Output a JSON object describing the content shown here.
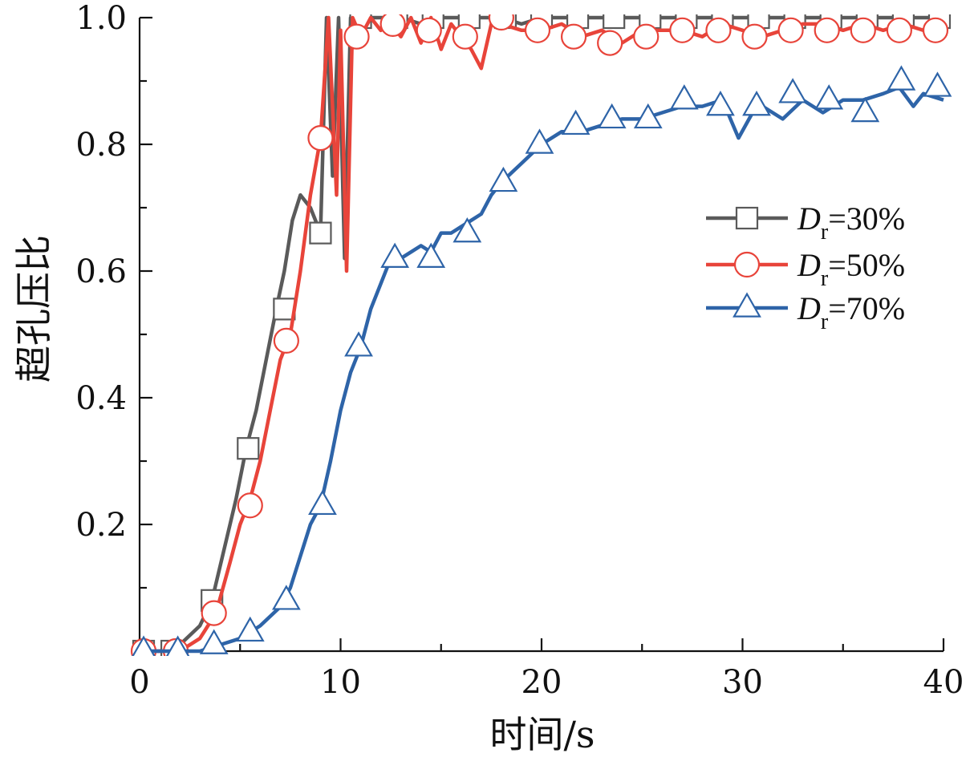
{
  "chart_data": {
    "type": "line",
    "title": "",
    "xlabel": "时间/s",
    "ylabel": "超孔压比",
    "xlim": [
      0,
      40
    ],
    "ylim": [
      0,
      1.0
    ],
    "x_ticks": [
      "0",
      "10",
      "20",
      "30",
      "40"
    ],
    "y_ticks": [
      "0.2",
      "0.4",
      "0.6",
      "0.8",
      "1.0"
    ],
    "grid": false,
    "legend_position": "right-center",
    "series": [
      {
        "name": "Dr=30%",
        "legend_main": "D",
        "legend_sub": "r",
        "legend_rest": "=30%",
        "color": "#5a5a5a",
        "marker": "square",
        "x": [
          0.2,
          1.0,
          2.0,
          3.0,
          3.6,
          4.2,
          4.8,
          5.3,
          5.8,
          6.3,
          6.8,
          7.2,
          7.6,
          8.0,
          8.5,
          9.0,
          9.3,
          9.6,
          9.9,
          10.2,
          10.5,
          11.0,
          12.0,
          13.0,
          14.0,
          15.0,
          16.0,
          17.0,
          18.0,
          19.0,
          20.0,
          22.0,
          24.0,
          26.0,
          28.0,
          30.0,
          32.0,
          34.0,
          36.0,
          38.0,
          40.0
        ],
        "y": [
          0.0,
          0.0,
          0.01,
          0.04,
          0.08,
          0.16,
          0.24,
          0.32,
          0.38,
          0.46,
          0.54,
          0.6,
          0.68,
          0.72,
          0.7,
          0.66,
          1.0,
          0.75,
          1.0,
          0.62,
          1.0,
          1.0,
          1.0,
          1.0,
          0.99,
          1.0,
          1.0,
          1.0,
          1.0,
          0.99,
          1.0,
          1.0,
          1.0,
          1.0,
          1.0,
          1.0,
          1.0,
          1.0,
          1.0,
          1.0,
          1.0
        ],
        "marker_x": [
          0.2,
          1.6,
          3.6,
          5.4,
          7.2,
          9.0,
          11.0,
          12.8,
          14.6,
          16.4,
          18.2,
          20.0,
          21.8,
          23.6,
          25.4,
          27.2,
          29.0,
          30.8,
          32.6,
          34.4,
          36.2,
          38.0,
          39.8
        ],
        "marker_y": [
          0.0,
          0.0,
          0.08,
          0.32,
          0.54,
          0.66,
          1.0,
          1.0,
          1.0,
          1.0,
          1.0,
          1.0,
          1.0,
          1.0,
          1.0,
          1.0,
          1.0,
          1.0,
          1.0,
          1.0,
          1.0,
          1.0,
          1.0
        ]
      },
      {
        "name": "Dr=50%",
        "legend_main": "D",
        "legend_sub": "r",
        "legend_rest": "=50%",
        "color": "#e8443a",
        "marker": "circle",
        "x": [
          0.2,
          1.0,
          2.0,
          3.0,
          3.8,
          4.5,
          5.0,
          5.5,
          6.0,
          6.5,
          7.0,
          7.5,
          8.0,
          8.5,
          9.0,
          9.4,
          9.8,
          10.0,
          10.3,
          10.6,
          11.0,
          11.5,
          12.0,
          12.5,
          13.0,
          13.5,
          14.0,
          14.5,
          15.0,
          15.5,
          16.0,
          16.5,
          17.0,
          17.5,
          18.0,
          19.0,
          20.0,
          21.0,
          22.0,
          23.0,
          24.0,
          25.0,
          26.0,
          27.0,
          28.0,
          29.0,
          30.0,
          31.0,
          32.0,
          33.0,
          34.0,
          35.0,
          36.0,
          37.0,
          38.0,
          39.0,
          40.0
        ],
        "y": [
          0.0,
          0.0,
          0.0,
          0.02,
          0.06,
          0.14,
          0.2,
          0.24,
          0.3,
          0.38,
          0.46,
          0.5,
          0.6,
          0.72,
          0.81,
          1.0,
          0.72,
          0.98,
          0.6,
          1.0,
          0.97,
          1.0,
          0.98,
          0.99,
          0.97,
          1.0,
          0.96,
          1.0,
          0.95,
          0.99,
          0.97,
          0.95,
          0.92,
          0.99,
          0.99,
          0.98,
          0.98,
          0.99,
          0.97,
          0.98,
          0.96,
          0.98,
          0.98,
          0.98,
          0.97,
          0.99,
          0.98,
          0.97,
          0.98,
          0.99,
          0.99,
          0.98,
          0.99,
          0.98,
          0.99,
          0.98,
          0.99
        ],
        "marker_x": [
          0.2,
          1.8,
          3.7,
          5.5,
          7.3,
          9.0,
          10.8,
          12.6,
          14.4,
          16.2,
          18.0,
          19.8,
          21.6,
          23.4,
          25.2,
          27.0,
          28.8,
          30.6,
          32.4,
          34.2,
          36.0,
          37.8,
          39.6
        ],
        "marker_y": [
          0.0,
          0.0,
          0.06,
          0.23,
          0.49,
          0.81,
          0.97,
          0.99,
          0.98,
          0.97,
          1.0,
          0.98,
          0.97,
          0.96,
          0.97,
          0.98,
          0.98,
          0.97,
          0.98,
          0.98,
          0.98,
          0.98,
          0.98
        ]
      },
      {
        "name": "Dr=70%",
        "legend_main": "D",
        "legend_sub": "r",
        "legend_rest": "=70%",
        "color": "#2e64a8",
        "marker": "triangle",
        "x": [
          0.2,
          1.0,
          2.0,
          3.0,
          4.0,
          5.0,
          6.0,
          7.0,
          7.5,
          8.0,
          8.5,
          9.0,
          9.5,
          10.0,
          10.5,
          11.0,
          11.5,
          12.0,
          12.5,
          13.0,
          13.5,
          14.0,
          14.5,
          15.0,
          15.5,
          16.0,
          16.5,
          17.0,
          17.5,
          18.0,
          19.0,
          20.0,
          21.0,
          22.0,
          23.0,
          24.0,
          25.0,
          26.0,
          27.0,
          28.0,
          29.0,
          29.8,
          30.5,
          31.0,
          32.0,
          33.0,
          34.0,
          35.0,
          36.0,
          37.0,
          37.8,
          38.5,
          39.0,
          40.0
        ],
        "y": [
          0.0,
          0.0,
          0.0,
          0.0,
          0.01,
          0.02,
          0.04,
          0.07,
          0.1,
          0.15,
          0.2,
          0.23,
          0.3,
          0.38,
          0.44,
          0.48,
          0.54,
          0.58,
          0.62,
          0.62,
          0.63,
          0.64,
          0.63,
          0.66,
          0.66,
          0.67,
          0.68,
          0.69,
          0.72,
          0.74,
          0.77,
          0.8,
          0.82,
          0.82,
          0.83,
          0.84,
          0.84,
          0.85,
          0.86,
          0.86,
          0.87,
          0.81,
          0.85,
          0.86,
          0.84,
          0.87,
          0.85,
          0.87,
          0.87,
          0.88,
          0.89,
          0.86,
          0.88,
          0.87
        ],
        "marker_x": [
          0.2,
          1.9,
          3.7,
          5.5,
          7.3,
          9.1,
          10.9,
          12.7,
          14.5,
          16.3,
          18.1,
          19.9,
          21.7,
          23.5,
          25.3,
          27.1,
          28.9,
          30.7,
          32.5,
          34.3,
          36.1,
          37.9,
          39.7
        ],
        "marker_y": [
          0.0,
          0.0,
          0.01,
          0.03,
          0.08,
          0.23,
          0.48,
          0.62,
          0.62,
          0.66,
          0.74,
          0.8,
          0.83,
          0.84,
          0.84,
          0.87,
          0.86,
          0.86,
          0.88,
          0.87,
          0.85,
          0.9,
          0.89
        ]
      }
    ]
  }
}
